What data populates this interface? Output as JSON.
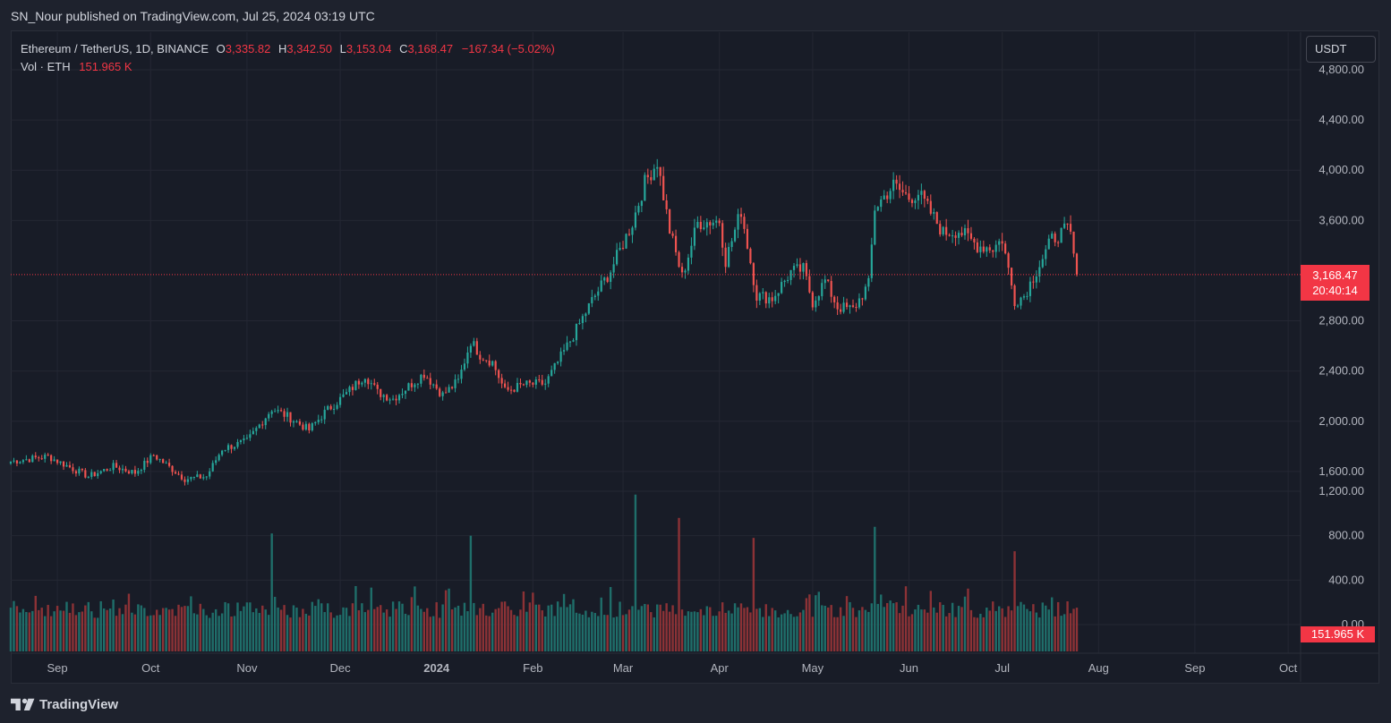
{
  "header": {
    "publisher_text": "SN_Nour published on TradingView.com, Jul 25, 2024 03:19 UTC"
  },
  "legend": {
    "symbol": "Ethereum / TetherUS, 1D, BINANCE",
    "open_label": "O",
    "open": "3,335.82",
    "high_label": "H",
    "high": "3,342.50",
    "low_label": "L",
    "low": "3,153.04",
    "close_label": "C",
    "close": "3,168.47",
    "change": "−167.34 (−5.02%)",
    "vol_label": "Vol · ETH",
    "vol_value": "151.965 K"
  },
  "currency_button": "USDT",
  "last_price": {
    "price": "3,168.47",
    "countdown": "20:40:14"
  },
  "volume_badge": "151.965 K",
  "footer": {
    "brand": "TradingView",
    "logo_icon": "tradingview-logo-icon"
  },
  "colors": {
    "up": "#26a69a",
    "down": "#ef5350",
    "price_line": "#f23645",
    "background": "#181c27",
    "grid": "#242733"
  },
  "chart_data": {
    "type": "candlestick",
    "title": "Ethereum / TetherUS, 1D, BINANCE",
    "y_axis": {
      "ticks": [
        "4,800.00",
        "4,400.00",
        "4,000.00",
        "3,600.00",
        "2,800.00",
        "2,400.00",
        "2,000.00",
        "1,600.00",
        "1,200.00",
        "800.00",
        "400.00",
        "0.00"
      ],
      "tick_values": [
        4800,
        4400,
        4000,
        3600,
        2800,
        2400,
        2000,
        1600
      ],
      "volume_tick_values": [
        1200,
        800,
        400,
        0
      ],
      "ylim": [
        1050,
        4950
      ]
    },
    "x_axis": {
      "labels": [
        "Sep",
        "Oct",
        "Nov",
        "Dec",
        "2024",
        "Feb",
        "Mar",
        "Apr",
        "May",
        "Jun",
        "Jul",
        "Aug",
        "Sep",
        "Oct"
      ],
      "label_dates": [
        "2023-09-01",
        "2023-10-01",
        "2023-11-01",
        "2023-12-01",
        "2024-01-01",
        "2024-02-01",
        "2024-03-01",
        "2024-04-01",
        "2024-05-01",
        "2024-06-01",
        "2024-07-01",
        "2024-08-01",
        "2024-09-01",
        "2024-10-01"
      ],
      "start_date": "2023-08-17",
      "end_date": "2024-10-05"
    },
    "grid": true,
    "price_path": [
      [
        "2023-08-17",
        1680
      ],
      [
        "2023-08-29",
        1720
      ],
      [
        "2023-09-11",
        1560
      ],
      [
        "2023-09-19",
        1640
      ],
      [
        "2023-09-26",
        1590
      ],
      [
        "2023-10-02",
        1730
      ],
      [
        "2023-10-12",
        1540
      ],
      [
        "2023-10-19",
        1560
      ],
      [
        "2023-10-24",
        1780
      ],
      [
        "2023-11-01",
        1840
      ],
      [
        "2023-11-09",
        2100
      ],
      [
        "2023-11-14",
        2040
      ],
      [
        "2023-11-21",
        1930
      ],
      [
        "2023-11-26",
        2070
      ],
      [
        "2023-12-03",
        2220
      ],
      [
        "2023-12-09",
        2370
      ],
      [
        "2023-12-13",
        2230
      ],
      [
        "2023-12-18",
        2180
      ],
      [
        "2023-12-28",
        2380
      ],
      [
        "2024-01-03",
        2210
      ],
      [
        "2024-01-08",
        2320
      ],
      [
        "2024-01-12",
        2640
      ],
      [
        "2024-01-15",
        2530
      ],
      [
        "2024-01-19",
        2470
      ],
      [
        "2024-01-23",
        2240
      ],
      [
        "2024-01-29",
        2290
      ],
      [
        "2024-02-05",
        2300
      ],
      [
        "2024-02-13",
        2640
      ],
      [
        "2024-02-20",
        2960
      ],
      [
        "2024-02-26",
        3200
      ],
      [
        "2024-03-04",
        3580
      ],
      [
        "2024-03-08",
        3900
      ],
      [
        "2024-03-12",
        4070
      ],
      [
        "2024-03-16",
        3520
      ],
      [
        "2024-03-20",
        3150
      ],
      [
        "2024-03-25",
        3580
      ],
      [
        "2024-04-01",
        3600
      ],
      [
        "2024-04-03",
        3280
      ],
      [
        "2024-04-08",
        3680
      ],
      [
        "2024-04-13",
        3000
      ],
      [
        "2024-04-18",
        2980
      ],
      [
        "2024-04-24",
        3190
      ],
      [
        "2024-04-28",
        3210
      ],
      [
        "2024-05-01",
        2950
      ],
      [
        "2024-05-05",
        3120
      ],
      [
        "2024-05-09",
        2910
      ],
      [
        "2024-05-14",
        2890
      ],
      [
        "2024-05-19",
        3090
      ],
      [
        "2024-05-21",
        3700
      ],
      [
        "2024-05-27",
        3880
      ],
      [
        "2024-06-01",
        3780
      ],
      [
        "2024-06-04",
        3820
      ],
      [
        "2024-06-08",
        3660
      ],
      [
        "2024-06-12",
        3500
      ],
      [
        "2024-06-17",
        3520
      ],
      [
        "2024-06-23",
        3400
      ],
      [
        "2024-06-28",
        3380
      ],
      [
        "2024-07-01",
        3450
      ],
      [
        "2024-07-05",
        2960
      ],
      [
        "2024-07-08",
        3000
      ],
      [
        "2024-07-13",
        3250
      ],
      [
        "2024-07-17",
        3450
      ],
      [
        "2024-07-22",
        3530
      ],
      [
        "2024-07-23",
        3480
      ],
      [
        "2024-07-24",
        3336
      ],
      [
        "2024-07-25",
        3168
      ]
    ],
    "last_candle": {
      "open": 3335.82,
      "high": 3342.5,
      "low": 3153.04,
      "close": 3168.47,
      "change": -167.34,
      "change_pct": -5.02,
      "volume": 151965
    },
    "volume_spikes": [
      [
        "2023-11-09",
        820
      ],
      [
        "2024-01-12",
        800
      ],
      [
        "2024-03-05",
        1170
      ],
      [
        "2024-03-19",
        960
      ],
      [
        "2024-04-12",
        780
      ],
      [
        "2024-05-21",
        880
      ],
      [
        "2024-07-05",
        660
      ]
    ]
  }
}
